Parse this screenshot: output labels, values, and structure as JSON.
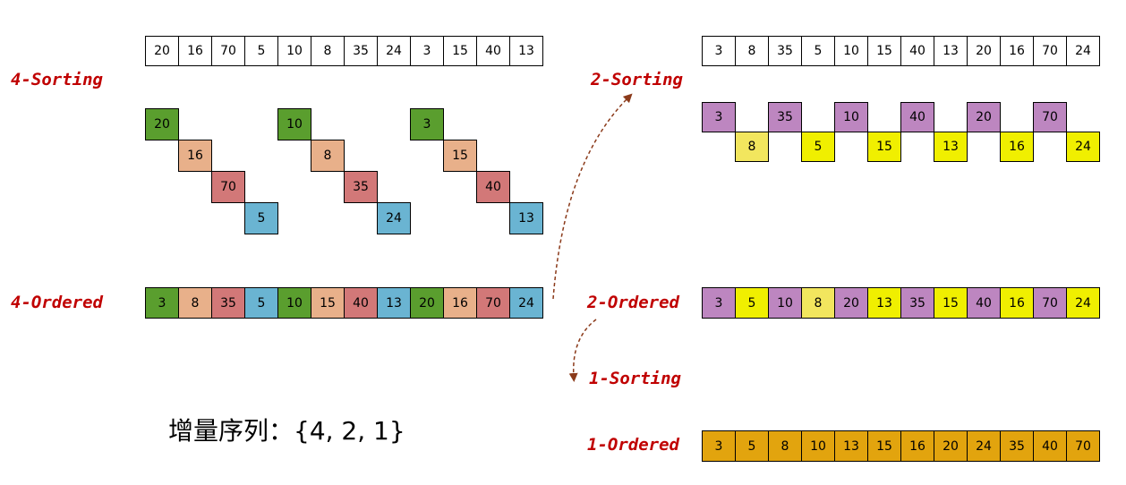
{
  "colors": {
    "g1": "#5a9e2e",
    "g2": "#e8b08a",
    "g3": "#d27878",
    "g4": "#6ab4d2",
    "purple": "#bd86c0",
    "yellow": "#f0ef00",
    "pale_yellow": "#f2e65e",
    "orange": "#e2a40e",
    "label_red": "#c00000",
    "arrow": "#8b3a1a"
  },
  "labels": {
    "sorting4": "4-Sorting",
    "ordered4": "4-Ordered",
    "sorting2": "2-Sorting",
    "ordered2": "2-Ordered",
    "sorting1": "1-Sorting",
    "ordered1": "1-Ordered",
    "increment_sequence": "增量序列：{4, 2, 1}"
  },
  "arrays": {
    "initial": [
      "20",
      "16",
      "70",
      "5",
      "10",
      "8",
      "35",
      "24",
      "3",
      "15",
      "40",
      "13"
    ],
    "four_sorting_groups": [
      {
        "values": [
          "20",
          "16",
          "70",
          "5"
        ],
        "colors": [
          "g1",
          "g2",
          "g3",
          "g4"
        ]
      },
      {
        "values": [
          "10",
          "8",
          "35",
          "24"
        ],
        "colors": [
          "g1",
          "g2",
          "g3",
          "g4"
        ]
      },
      {
        "values": [
          "3",
          "15",
          "40",
          "13"
        ],
        "colors": [
          "g1",
          "g2",
          "g3",
          "g4"
        ]
      }
    ],
    "four_ordered": {
      "values": [
        "3",
        "8",
        "35",
        "5",
        "10",
        "15",
        "40",
        "13",
        "20",
        "16",
        "70",
        "24"
      ],
      "colors": [
        "g1",
        "g2",
        "g3",
        "g4",
        "g1",
        "g2",
        "g3",
        "g4",
        "g1",
        "g2",
        "g3",
        "g4"
      ]
    },
    "two_initial": [
      "3",
      "8",
      "35",
      "5",
      "10",
      "15",
      "40",
      "13",
      "20",
      "16",
      "70",
      "24"
    ],
    "two_sorting": {
      "values": [
        "3",
        "8",
        "35",
        "5",
        "10",
        "15",
        "40",
        "13",
        "20",
        "16",
        "70",
        "24"
      ],
      "colors": [
        "purple",
        "pale_yellow",
        "purple",
        "yellow",
        "purple",
        "yellow",
        "purple",
        "yellow",
        "purple",
        "yellow",
        "purple",
        "yellow"
      ]
    },
    "two_ordered": {
      "values": [
        "3",
        "5",
        "10",
        "8",
        "20",
        "13",
        "35",
        "15",
        "40",
        "16",
        "70",
        "24"
      ],
      "colors": [
        "purple",
        "yellow",
        "purple",
        "pale_yellow",
        "purple",
        "yellow",
        "purple",
        "yellow",
        "purple",
        "yellow",
        "purple",
        "yellow"
      ]
    },
    "one_ordered": [
      "3",
      "5",
      "8",
      "10",
      "13",
      "15",
      "16",
      "20",
      "24",
      "35",
      "40",
      "70"
    ]
  }
}
